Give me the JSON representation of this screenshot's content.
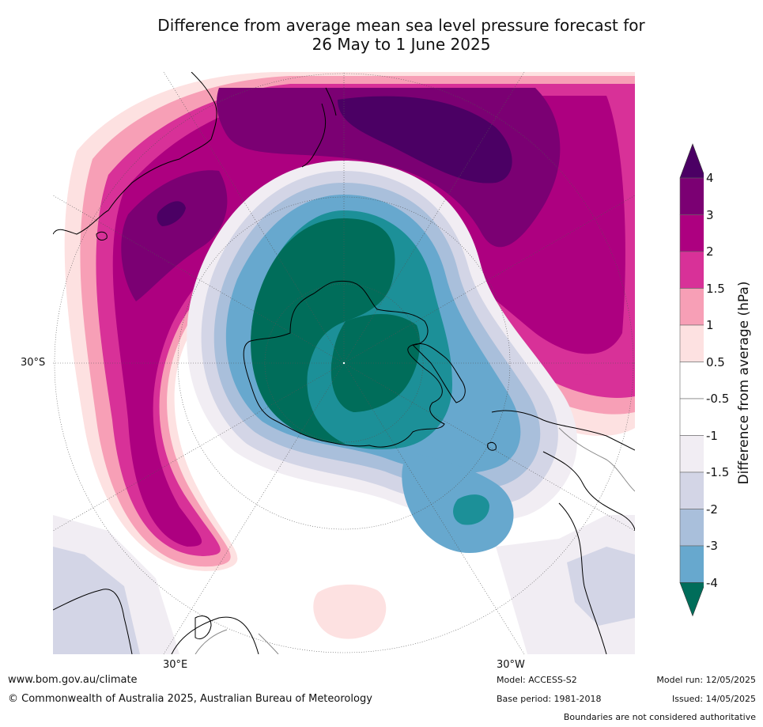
{
  "title": {
    "line1": "Difference from average mean sea level pressure forecast for",
    "line2": "26 May to 1 June 2025"
  },
  "map": {
    "projection": "south-polar stereographic",
    "labels": {
      "lat_left": "30°S",
      "lon_bottom_left": "30°E",
      "lon_bottom_right": "30°W"
    }
  },
  "legend": {
    "title": "Difference from average (hPa)",
    "ticks": [
      "4",
      "3",
      "2",
      "1.5",
      "1",
      "0.5",
      "-0.5",
      "-1",
      "-1.5",
      "-2",
      "-3",
      "-4"
    ],
    "colors": {
      "above_4": "#4b0064",
      "3_to_4": "#7b0073",
      "2_to_3": "#ad0080",
      "1_5_to_2": "#d83198",
      "1_to_1_5": "#f79fb6",
      "0_5_to_1": "#fde1e1",
      "neutral": "#ffffff",
      "m0_5_to_m1": "#f1edf3",
      "m1_to_m1_5": "#d3d5e6",
      "m1_5_to_m2": "#a9bfdb",
      "m2_to_m3": "#67a8ce",
      "m3_to_m4": "#1c9098",
      "below_m4": "#006d5a"
    }
  },
  "footer": {
    "website": "www.bom.gov.au/climate",
    "copyright": "© Commonwealth of Australia 2025, Australian Bureau of Meteorology",
    "model": "Model: ACCESS-S2",
    "base_period": "Base period: 1981-2018",
    "model_run": "Model run: 12/05/2025",
    "issued": "Issued: 14/05/2025",
    "disclaimer": "Boundaries are not considered authoritative"
  }
}
